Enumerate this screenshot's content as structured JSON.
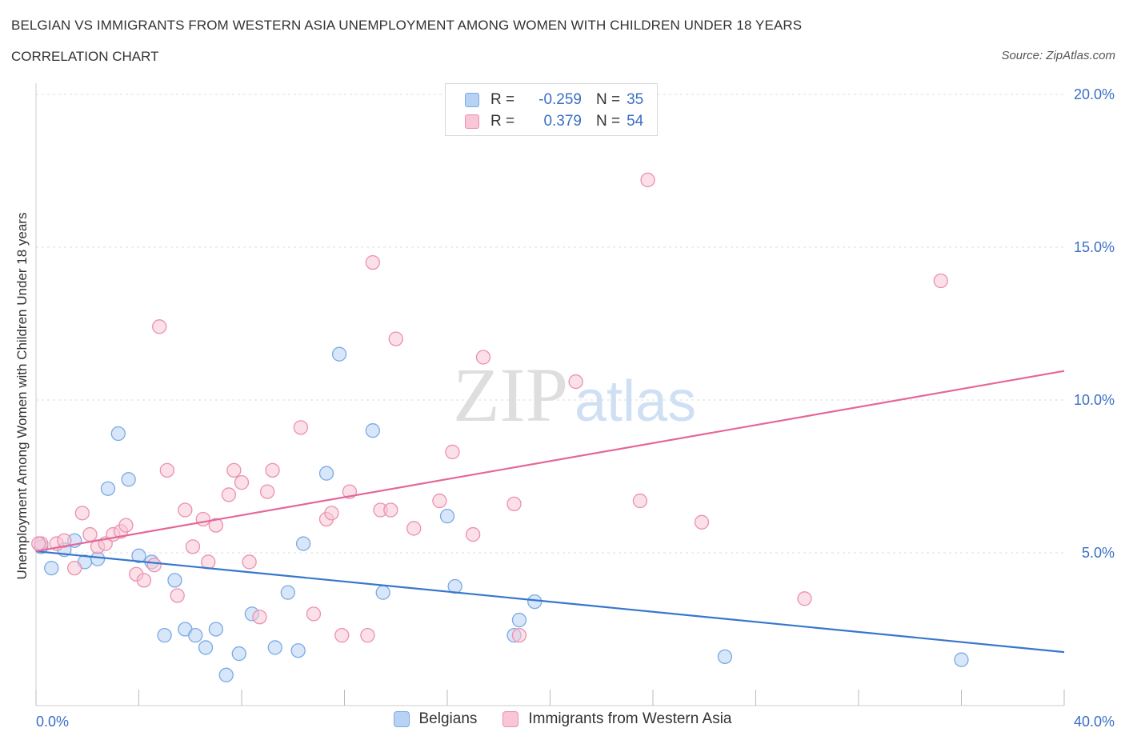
{
  "title": "BELGIAN VS IMMIGRANTS FROM WESTERN ASIA UNEMPLOYMENT AMONG WOMEN WITH CHILDREN UNDER 18 YEARS",
  "subtitle": "CORRELATION CHART",
  "source": "Source: ZipAtlas.com",
  "watermark": {
    "zip": "ZIP",
    "atlas": "atlas"
  },
  "colors": {
    "belgians_fill": "#b8d2f5",
    "belgians_stroke": "#7aaae4",
    "belgians_line": "#3777cc",
    "immigrants_fill": "#f8c6d6",
    "immigrants_stroke": "#eb90af",
    "immigrants_line": "#e4679a",
    "axis_text": "#3a6fc4",
    "grid": "#dedede"
  },
  "legend": {
    "rows": [
      {
        "r_label": "R =",
        "r_value": "-0.259",
        "n_label": "N =",
        "n_value": "35"
      },
      {
        "r_label": "R =",
        "r_value": "0.379",
        "n_label": "N =",
        "n_value": "54"
      }
    ]
  },
  "bottom_legend": {
    "belgians": "Belgians",
    "immigrants": "Immigrants from Western Asia"
  },
  "chart_data": {
    "type": "scatter",
    "title": "BELGIAN VS IMMIGRANTS FROM WESTERN ASIA UNEMPLOYMENT AMONG WOMEN WITH CHILDREN UNDER 18 YEARS",
    "subtitle": "CORRELATION CHART",
    "xlabel": "",
    "ylabel": "Unemployment Among Women with Children Under 18 years",
    "xlim": [
      0,
      40
    ],
    "ylim": [
      0,
      20
    ],
    "x_tick_labels": [
      "0.0%",
      "40.0%"
    ],
    "y_ticks": [
      5,
      10,
      15,
      20
    ],
    "y_tick_labels": [
      "5.0%",
      "10.0%",
      "15.0%",
      "20.0%"
    ],
    "grid": true,
    "legend_position": "top-center",
    "series": [
      {
        "name": "Belgians",
        "r": -0.259,
        "n": 35,
        "trend": {
          "x": [
            0,
            40
          ],
          "y": [
            5.05,
            1.75
          ]
        },
        "points": [
          [
            0.2,
            5.2
          ],
          [
            0.6,
            4.5
          ],
          [
            1.1,
            5.1
          ],
          [
            1.5,
            5.4
          ],
          [
            1.9,
            4.7
          ],
          [
            2.4,
            4.8
          ],
          [
            2.8,
            7.1
          ],
          [
            3.2,
            8.9
          ],
          [
            3.6,
            7.4
          ],
          [
            4.0,
            4.9
          ],
          [
            4.5,
            4.7
          ],
          [
            5.0,
            2.3
          ],
          [
            5.4,
            4.1
          ],
          [
            5.8,
            2.5
          ],
          [
            6.2,
            2.3
          ],
          [
            6.6,
            1.9
          ],
          [
            7.0,
            2.5
          ],
          [
            7.4,
            1.0
          ],
          [
            7.9,
            1.7
          ],
          [
            8.4,
            3.0
          ],
          [
            9.3,
            1.9
          ],
          [
            9.8,
            3.7
          ],
          [
            10.2,
            1.8
          ],
          [
            10.4,
            5.3
          ],
          [
            11.3,
            7.6
          ],
          [
            11.8,
            11.5
          ],
          [
            13.1,
            9.0
          ],
          [
            13.5,
            3.7
          ],
          [
            16.0,
            6.2
          ],
          [
            16.3,
            3.9
          ],
          [
            18.6,
            2.3
          ],
          [
            18.8,
            2.8
          ],
          [
            19.4,
            3.4
          ],
          [
            26.8,
            1.6
          ],
          [
            36.0,
            1.5
          ]
        ]
      },
      {
        "name": "Immigrants from Western Asia",
        "r": 0.379,
        "n": 54,
        "trend": {
          "x": [
            0,
            40
          ],
          "y": [
            5.05,
            10.95
          ]
        },
        "points": [
          [
            0.2,
            5.3
          ],
          [
            0.8,
            5.3
          ],
          [
            1.1,
            5.4
          ],
          [
            1.5,
            4.5
          ],
          [
            1.8,
            6.3
          ],
          [
            2.1,
            5.6
          ],
          [
            2.4,
            5.2
          ],
          [
            2.7,
            5.3
          ],
          [
            3.0,
            5.6
          ],
          [
            3.3,
            5.7
          ],
          [
            3.5,
            5.9
          ],
          [
            3.9,
            4.3
          ],
          [
            4.2,
            4.1
          ],
          [
            4.6,
            4.6
          ],
          [
            4.8,
            12.4
          ],
          [
            5.1,
            7.7
          ],
          [
            5.5,
            3.6
          ],
          [
            5.8,
            6.4
          ],
          [
            6.1,
            5.2
          ],
          [
            6.5,
            6.1
          ],
          [
            6.7,
            4.7
          ],
          [
            7.0,
            5.9
          ],
          [
            7.5,
            6.9
          ],
          [
            7.7,
            7.7
          ],
          [
            8.0,
            7.3
          ],
          [
            8.3,
            4.7
          ],
          [
            8.7,
            2.9
          ],
          [
            9.0,
            7.0
          ],
          [
            9.2,
            7.7
          ],
          [
            10.3,
            9.1
          ],
          [
            10.8,
            3.0
          ],
          [
            11.3,
            6.1
          ],
          [
            11.5,
            6.3
          ],
          [
            11.9,
            2.3
          ],
          [
            12.2,
            7.0
          ],
          [
            12.9,
            2.3
          ],
          [
            13.1,
            14.5
          ],
          [
            13.4,
            6.4
          ],
          [
            13.8,
            6.4
          ],
          [
            14.0,
            12.0
          ],
          [
            14.7,
            5.8
          ],
          [
            15.7,
            6.7
          ],
          [
            16.2,
            8.3
          ],
          [
            17.0,
            5.6
          ],
          [
            17.4,
            11.4
          ],
          [
            18.6,
            6.6
          ],
          [
            18.8,
            2.3
          ],
          [
            21.0,
            10.6
          ],
          [
            23.5,
            6.7
          ],
          [
            23.8,
            17.2
          ],
          [
            25.9,
            6.0
          ],
          [
            29.9,
            3.5
          ],
          [
            35.2,
            13.9
          ],
          [
            0.1,
            5.3
          ]
        ]
      }
    ]
  }
}
